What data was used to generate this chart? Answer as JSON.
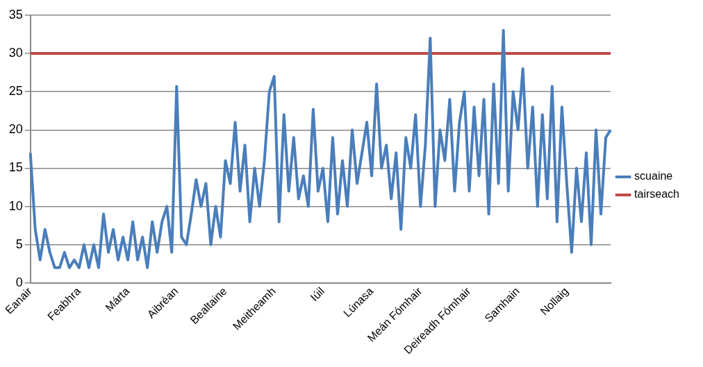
{
  "chart_data": {
    "type": "line",
    "categories": [
      "Eanair",
      null,
      null,
      null,
      null,
      null,
      null,
      null,
      null,
      null,
      "Feabhra",
      null,
      null,
      null,
      null,
      null,
      null,
      null,
      null,
      null,
      "Márta",
      null,
      null,
      null,
      null,
      null,
      null,
      null,
      null,
      null,
      "Aibréan",
      null,
      null,
      null,
      null,
      null,
      null,
      null,
      null,
      null,
      "Bealtaine",
      null,
      null,
      null,
      null,
      null,
      null,
      null,
      null,
      null,
      "Meitheamh",
      null,
      null,
      null,
      null,
      null,
      null,
      null,
      null,
      null,
      "Iúil",
      null,
      null,
      null,
      null,
      null,
      null,
      null,
      null,
      null,
      "Lúnasa",
      null,
      null,
      null,
      null,
      null,
      null,
      null,
      null,
      null,
      "Meán Fómhair",
      null,
      null,
      null,
      null,
      null,
      null,
      null,
      null,
      null,
      "Deireadh Fómhair",
      null,
      null,
      null,
      null,
      null,
      null,
      null,
      null,
      null,
      "Samhain",
      null,
      null,
      null,
      null,
      null,
      null,
      null,
      null,
      null,
      "Nollaig",
      null,
      null,
      null,
      null,
      null,
      null,
      null,
      null,
      null
    ],
    "series": [
      {
        "name": "scuaine",
        "color": "#4a7ebb",
        "values": [
          17,
          7,
          3,
          7,
          4,
          2,
          2,
          4,
          2,
          3,
          2,
          5,
          2,
          5,
          2,
          9,
          4,
          7,
          3,
          6,
          3,
          8,
          3,
          6,
          2,
          8,
          4,
          8,
          10,
          4,
          25.7,
          6,
          5,
          9,
          13.5,
          10,
          13,
          5,
          10,
          6,
          16,
          13,
          21,
          12,
          18,
          8,
          15,
          10,
          16,
          25,
          27,
          8,
          22,
          12,
          19,
          11,
          14,
          10,
          22.7,
          12,
          15,
          8,
          19,
          9,
          16,
          10,
          20,
          13,
          17,
          21,
          14,
          26,
          15,
          18,
          11,
          17,
          7,
          19,
          15,
          22,
          10,
          18,
          32,
          10,
          20,
          16,
          24,
          12,
          21,
          25,
          12,
          23,
          14,
          24,
          9,
          26,
          13,
          33,
          12,
          25,
          20,
          28,
          15,
          23,
          10,
          22,
          11,
          25.7,
          8,
          23,
          13,
          4,
          15,
          8,
          17,
          5,
          20,
          9,
          19,
          20
        ]
      },
      {
        "name": "tairseach",
        "color": "#be4b48",
        "values": [
          30,
          30,
          30,
          30,
          30,
          30,
          30,
          30,
          30,
          30,
          30,
          30,
          30,
          30,
          30,
          30,
          30,
          30,
          30,
          30,
          30,
          30,
          30,
          30,
          30,
          30,
          30,
          30,
          30,
          30,
          30,
          30,
          30,
          30,
          30,
          30,
          30,
          30,
          30,
          30,
          30,
          30,
          30,
          30,
          30,
          30,
          30,
          30,
          30,
          30,
          30,
          30,
          30,
          30,
          30,
          30,
          30,
          30,
          30,
          30,
          30,
          30,
          30,
          30,
          30,
          30,
          30,
          30,
          30,
          30,
          30,
          30,
          30,
          30,
          30,
          30,
          30,
          30,
          30,
          30,
          30,
          30,
          30,
          30,
          30,
          30,
          30,
          30,
          30,
          30,
          30,
          30,
          30,
          30,
          30,
          30,
          30,
          30,
          30,
          30,
          30,
          30,
          30,
          30,
          30,
          30,
          30,
          30,
          30,
          30,
          30,
          30,
          30,
          30,
          30,
          30,
          30,
          30,
          30,
          30
        ]
      }
    ],
    "ylim": [
      0,
      35
    ],
    "yticks": [
      0,
      5,
      10,
      15,
      20,
      25,
      30,
      35
    ],
    "grid": "y",
    "legend": "right",
    "marker": "none",
    "line_style": "solid"
  }
}
